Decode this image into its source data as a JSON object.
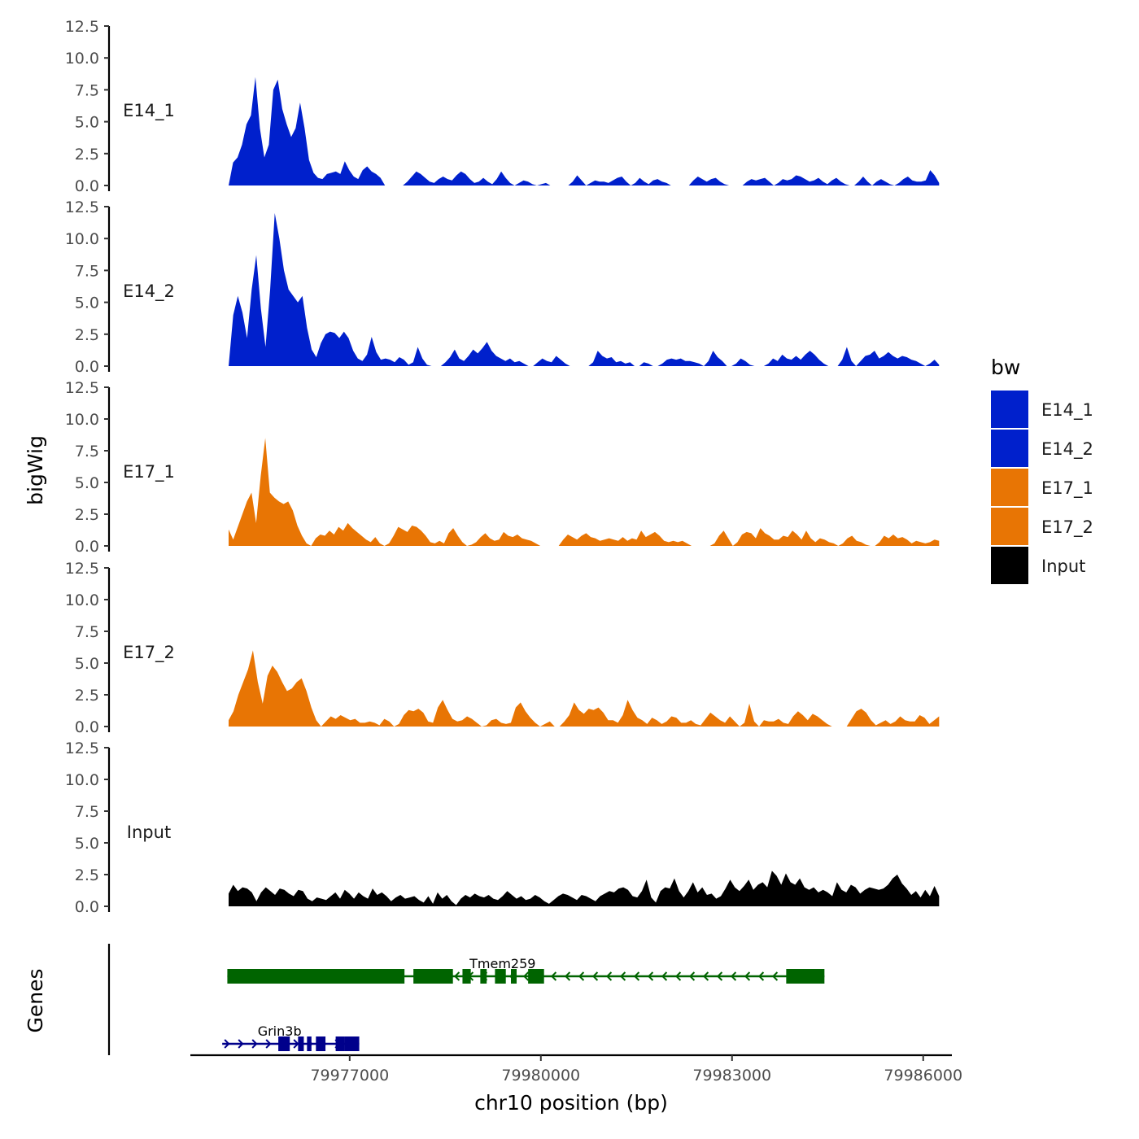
{
  "chart_data": {
    "type": "area",
    "ylabel": "bigWig",
    "xlabel": "chr10 position (bp)",
    "genes_label": "Genes",
    "ylim": [
      0,
      12.5
    ],
    "yticks": [
      "0.0",
      "2.5",
      "5.0",
      "7.5",
      "10.0",
      "12.5"
    ],
    "xlim": [
      79974500,
      79986450
    ],
    "xticks": [
      {
        "value": 79977000,
        "label": "79977000"
      },
      {
        "value": 79980000,
        "label": "79980000"
      },
      {
        "value": 79983000,
        "label": "79983000"
      },
      {
        "value": 79986000,
        "label": "79986000"
      }
    ],
    "data_range": [
      79975100,
      79986250
    ],
    "legend": {
      "title": "bw",
      "entries": [
        {
          "label": "E14_1",
          "color": "#0020CC"
        },
        {
          "label": "E14_2",
          "color": "#0020CC"
        },
        {
          "label": "E17_1",
          "color": "#E87504"
        },
        {
          "label": "E17_2",
          "color": "#E87504"
        },
        {
          "label": "Input",
          "color": "#000000"
        }
      ]
    },
    "series": [
      {
        "name": "E14_1",
        "label": "E14_1",
        "color": "#0020CC",
        "values": [
          0,
          1.8,
          2.2,
          3.2,
          4.8,
          5.5,
          8.5,
          4.5,
          2.2,
          3.2,
          7.5,
          8.3,
          6,
          4.8,
          3.8,
          4.5,
          6.5,
          4.5,
          2,
          1,
          0.6,
          0.5,
          0.9,
          1,
          1.1,
          0.9,
          1.9,
          1.2,
          0.7,
          0.5,
          1.2,
          1.5,
          1.1,
          0.9,
          0.6,
          0,
          0,
          0,
          0,
          0,
          0.3,
          0.7,
          1.1,
          0.9,
          0.6,
          0.3,
          0.2,
          0.5,
          0.7,
          0.5,
          0.4,
          0.8,
          1.1,
          0.9,
          0.5,
          0.2,
          0.3,
          0.6,
          0.3,
          0.1,
          0.5,
          1.1,
          0.6,
          0.2,
          0,
          0.2,
          0.4,
          0.3,
          0.1,
          0,
          0.1,
          0.2,
          0,
          0,
          0,
          0,
          0,
          0.3,
          0.8,
          0.4,
          0,
          0.2,
          0.4,
          0.3,
          0.3,
          0.2,
          0.4,
          0.6,
          0.7,
          0.3,
          0,
          0.2,
          0.6,
          0.3,
          0.1,
          0.4,
          0.5,
          0.3,
          0.2,
          0,
          0,
          0,
          0,
          0,
          0.4,
          0.7,
          0.5,
          0.3,
          0.5,
          0.6,
          0.3,
          0.1,
          0,
          0,
          0,
          0,
          0.3,
          0.5,
          0.4,
          0.5,
          0.6,
          0.3,
          0,
          0.2,
          0.5,
          0.4,
          0.5,
          0.8,
          0.7,
          0.5,
          0.3,
          0.4,
          0.6,
          0.3,
          0.1,
          0.4,
          0.6,
          0.3,
          0.1,
          0,
          0,
          0.3,
          0.7,
          0.3,
          0,
          0.3,
          0.5,
          0.3,
          0.1,
          0,
          0.2,
          0.5,
          0.7,
          0.4,
          0.3,
          0.3,
          0.4,
          1.2,
          0.8,
          0.2
        ]
      },
      {
        "name": "E14_2",
        "label": "E14_2",
        "color": "#0020CC",
        "values": [
          0,
          4,
          5.5,
          4.2,
          2.2,
          6,
          8.7,
          4.5,
          1.5,
          6,
          12,
          10,
          7.5,
          6,
          5.5,
          5,
          5.5,
          3,
          1.3,
          0.7,
          1.8,
          2.5,
          2.7,
          2.6,
          2.2,
          2.7,
          2.2,
          1.2,
          0.6,
          0.4,
          0.9,
          2.3,
          1.1,
          0.5,
          0.6,
          0.5,
          0.3,
          0.7,
          0.5,
          0.1,
          0.3,
          1.5,
          0.6,
          0.1,
          0,
          0,
          0,
          0.3,
          0.7,
          1.3,
          0.6,
          0.4,
          0.8,
          1.3,
          1,
          1.4,
          1.9,
          1.2,
          0.8,
          0.6,
          0.4,
          0.6,
          0.3,
          0.4,
          0.2,
          0,
          0,
          0.3,
          0.6,
          0.4,
          0.3,
          0.8,
          0.5,
          0.2,
          0,
          0,
          0,
          0,
          0,
          0.3,
          1.2,
          0.8,
          0.6,
          0.7,
          0.3,
          0.4,
          0.2,
          0.3,
          0,
          0,
          0.3,
          0.2,
          0,
          0,
          0.2,
          0.5,
          0.6,
          0.5,
          0.6,
          0.4,
          0.4,
          0.3,
          0.2,
          0,
          0.4,
          1.2,
          0.7,
          0.4,
          0,
          0,
          0.2,
          0.6,
          0.4,
          0.1,
          0,
          0,
          0,
          0.2,
          0.6,
          0.4,
          0.9,
          0.6,
          0.5,
          0.8,
          0.5,
          0.9,
          1.2,
          0.9,
          0.5,
          0.2,
          0,
          0,
          0,
          0.5,
          1.5,
          0.4,
          0,
          0.4,
          0.8,
          0.9,
          1.2,
          0.6,
          0.8,
          1.1,
          0.8,
          0.6,
          0.8,
          0.7,
          0.5,
          0.4,
          0.2,
          0,
          0.2,
          0.5,
          0.1
        ]
      },
      {
        "name": "E17_1",
        "label": "E17_1",
        "color": "#E87504",
        "values": [
          1.3,
          0.5,
          1.5,
          2.5,
          3.5,
          4.2,
          1.8,
          5.5,
          8.5,
          4.2,
          3.8,
          3.5,
          3.3,
          3.5,
          2.8,
          1.6,
          0.8,
          0.2,
          0,
          0.6,
          0.9,
          0.8,
          1.2,
          0.9,
          1.5,
          1.2,
          1.8,
          1.4,
          1.1,
          0.8,
          0.5,
          0.3,
          0.7,
          0.2,
          0,
          0.2,
          0.8,
          1.5,
          1.3,
          1.1,
          1.6,
          1.5,
          1.2,
          0.8,
          0.3,
          0.2,
          0.4,
          0.2,
          1,
          1.4,
          0.8,
          0.3,
          0,
          0.1,
          0.3,
          0.7,
          1,
          0.6,
          0.4,
          0.5,
          1.1,
          0.8,
          0.7,
          0.9,
          0.6,
          0.5,
          0.4,
          0.2,
          0,
          0,
          0,
          0,
          0,
          0.5,
          0.9,
          0.7,
          0.5,
          0.8,
          1,
          0.7,
          0.6,
          0.4,
          0.5,
          0.6,
          0.5,
          0.4,
          0.7,
          0.4,
          0.6,
          0.5,
          1.2,
          0.7,
          0.9,
          1.1,
          0.8,
          0.4,
          0.3,
          0.4,
          0.3,
          0.4,
          0.2,
          0,
          0,
          0,
          0,
          0,
          0.2,
          0.8,
          1.2,
          0.6,
          0,
          0.3,
          0.9,
          1.1,
          1,
          0.6,
          1.4,
          1,
          0.8,
          0.5,
          0.5,
          0.8,
          0.7,
          1.2,
          0.9,
          0.5,
          1.2,
          0.6,
          0.3,
          0.6,
          0.5,
          0.3,
          0.2,
          0,
          0.2,
          0.6,
          0.8,
          0.4,
          0.3,
          0.1,
          0,
          0,
          0.3,
          0.8,
          0.6,
          0.9,
          0.6,
          0.7,
          0.5,
          0.2,
          0.4,
          0.3,
          0.2,
          0.3,
          0.5,
          0.4
        ]
      },
      {
        "name": "E17_2",
        "label": "E17_2",
        "color": "#E87504",
        "values": [
          0.5,
          1.2,
          2.5,
          3.5,
          4.5,
          6,
          3.5,
          1.8,
          4,
          4.8,
          4.3,
          3.5,
          2.8,
          3,
          3.5,
          3.8,
          2.8,
          1.5,
          0.5,
          0,
          0.4,
          0.8,
          0.6,
          0.9,
          0.7,
          0.5,
          0.6,
          0.3,
          0.3,
          0.4,
          0.3,
          0.1,
          0.6,
          0.4,
          0,
          0.2,
          0.9,
          1.3,
          1.2,
          1.4,
          1.1,
          0.4,
          0.3,
          1.5,
          2.1,
          1.3,
          0.6,
          0.4,
          0.5,
          0.8,
          0.6,
          0.3,
          0,
          0.1,
          0.5,
          0.6,
          0.3,
          0.2,
          0.3,
          1.5,
          1.9,
          1.2,
          0.7,
          0.3,
          0,
          0.2,
          0.4,
          0,
          0,
          0.4,
          0.9,
          1.9,
          1.3,
          1,
          1.4,
          1.3,
          1.5,
          1.1,
          0.5,
          0.5,
          0.3,
          0.9,
          2.1,
          1.3,
          0.7,
          0.5,
          0.2,
          0.7,
          0.5,
          0.2,
          0.4,
          0.8,
          0.7,
          0.3,
          0.3,
          0.5,
          0.2,
          0.1,
          0.6,
          1.1,
          0.8,
          0.5,
          0.3,
          0.8,
          0.4,
          0,
          0.3,
          1.8,
          0.4,
          0,
          0.5,
          0.4,
          0.4,
          0.6,
          0.3,
          0.2,
          0.8,
          1.2,
          0.9,
          0.5,
          1,
          0.8,
          0.5,
          0.2,
          0,
          0,
          0,
          0,
          0.6,
          1.2,
          1.4,
          1.1,
          0.5,
          0.1,
          0.3,
          0.5,
          0.2,
          0.4,
          0.8,
          0.5,
          0.4,
          0.4,
          0.9,
          0.7,
          0.2,
          0.5,
          0.8
        ]
      },
      {
        "name": "Input",
        "label": "Input",
        "color": "#000000",
        "values": [
          1,
          1.7,
          1.2,
          1.5,
          1.4,
          1.1,
          0.4,
          1.1,
          1.5,
          1.2,
          0.9,
          1.4,
          1.3,
          1,
          0.8,
          1.3,
          1.2,
          0.6,
          0.4,
          0.7,
          0.6,
          0.5,
          0.8,
          1.1,
          0.6,
          1.3,
          1,
          0.6,
          1.1,
          0.8,
          0.6,
          1.4,
          0.9,
          1.1,
          0.8,
          0.4,
          0.7,
          0.9,
          0.6,
          0.7,
          0.8,
          0.5,
          0.3,
          0.8,
          0.2,
          1.1,
          0.6,
          0.9,
          0.4,
          0.1,
          0.6,
          0.9,
          0.7,
          1,
          0.8,
          0.7,
          0.9,
          0.6,
          0.5,
          0.8,
          1.2,
          0.9,
          0.6,
          0.8,
          0.5,
          0.6,
          0.9,
          0.7,
          0.4,
          0.2,
          0.5,
          0.8,
          1,
          0.9,
          0.7,
          0.5,
          0.9,
          0.8,
          0.6,
          0.4,
          0.8,
          1,
          1.2,
          1.1,
          1.4,
          1.5,
          1.3,
          0.8,
          0.7,
          1.2,
          2.1,
          0.7,
          0.3,
          1.2,
          1.5,
          1.4,
          2.2,
          1.2,
          0.7,
          1.2,
          1.9,
          1.1,
          1.5,
          0.9,
          1,
          0.6,
          0.8,
          1.4,
          2.1,
          1.5,
          1.2,
          1.6,
          2.1,
          1.3,
          1.7,
          1.9,
          1.5,
          2.8,
          2.4,
          1.7,
          2.6,
          1.9,
          1.7,
          2.2,
          1.5,
          1.3,
          1.5,
          1.1,
          1.3,
          1.1,
          0.8,
          1.9,
          1.3,
          1.1,
          1.7,
          1.5,
          1,
          1.3,
          1.5,
          1.4,
          1.3,
          1.4,
          1.7,
          2.2,
          2.5,
          1.8,
          1.4,
          0.9,
          1.2,
          0.7,
          1.3,
          0.8,
          1.6,
          0.8
        ]
      }
    ],
    "genes": [
      {
        "name": "Tmem259",
        "strand": "-",
        "color": "#006400",
        "start": 79975080,
        "end": 79984450,
        "label_pos": 79979400,
        "exons": [
          [
            79975080,
            79977860
          ],
          [
            79978000,
            79978620
          ],
          [
            79978770,
            79978900
          ],
          [
            79979050,
            79979150
          ],
          [
            79979280,
            79979450
          ],
          [
            79979530,
            79979620
          ],
          [
            79979800,
            79980050
          ],
          [
            79983850,
            79984450
          ]
        ]
      },
      {
        "name": "Grin3b",
        "strand": "+",
        "color": "#00008B",
        "start": 79975000,
        "end": 79977150,
        "label_pos": 79975900,
        "exons": [
          [
            79975880,
            79976060
          ],
          [
            79976190,
            79976280
          ],
          [
            79976330,
            79976400
          ],
          [
            79976470,
            79976620
          ],
          [
            79976780,
            79976920
          ],
          [
            79977010,
            79977080
          ],
          [
            79976920,
            79977150
          ]
        ]
      }
    ]
  }
}
